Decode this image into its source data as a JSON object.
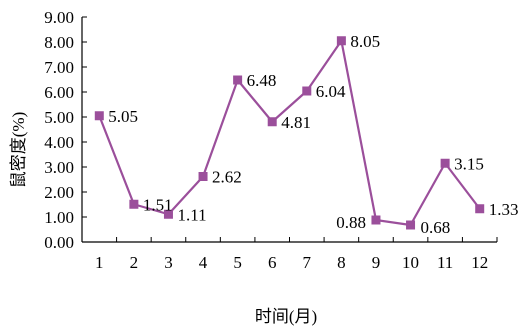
{
  "chart_data": {
    "type": "line",
    "title": "",
    "xlabel": "时间(月)",
    "ylabel": "鼠密度(%)",
    "categories": [
      "1",
      "2",
      "3",
      "4",
      "5",
      "6",
      "7",
      "8",
      "9",
      "10",
      "11",
      "12"
    ],
    "series": [
      {
        "values": [
          5.05,
          1.51,
          1.11,
          2.62,
          6.48,
          4.81,
          6.04,
          8.05,
          0.88,
          0.68,
          3.15,
          1.33
        ],
        "labels": [
          "5.05",
          "1.51",
          "1.11",
          "2.62",
          "6.48",
          "4.81",
          "6.04",
          "8.05",
          "0.88",
          "0.68",
          "3.15",
          "1.33"
        ],
        "color": "#9b4f9b",
        "marker": "square"
      }
    ],
    "ylim": [
      0,
      9
    ],
    "yticks": [
      "0.00",
      "1.00",
      "2.00",
      "3.00",
      "4.00",
      "5.00",
      "6.00",
      "7.00",
      "8.00",
      "9.00"
    ],
    "grid": false,
    "legend": "none"
  }
}
